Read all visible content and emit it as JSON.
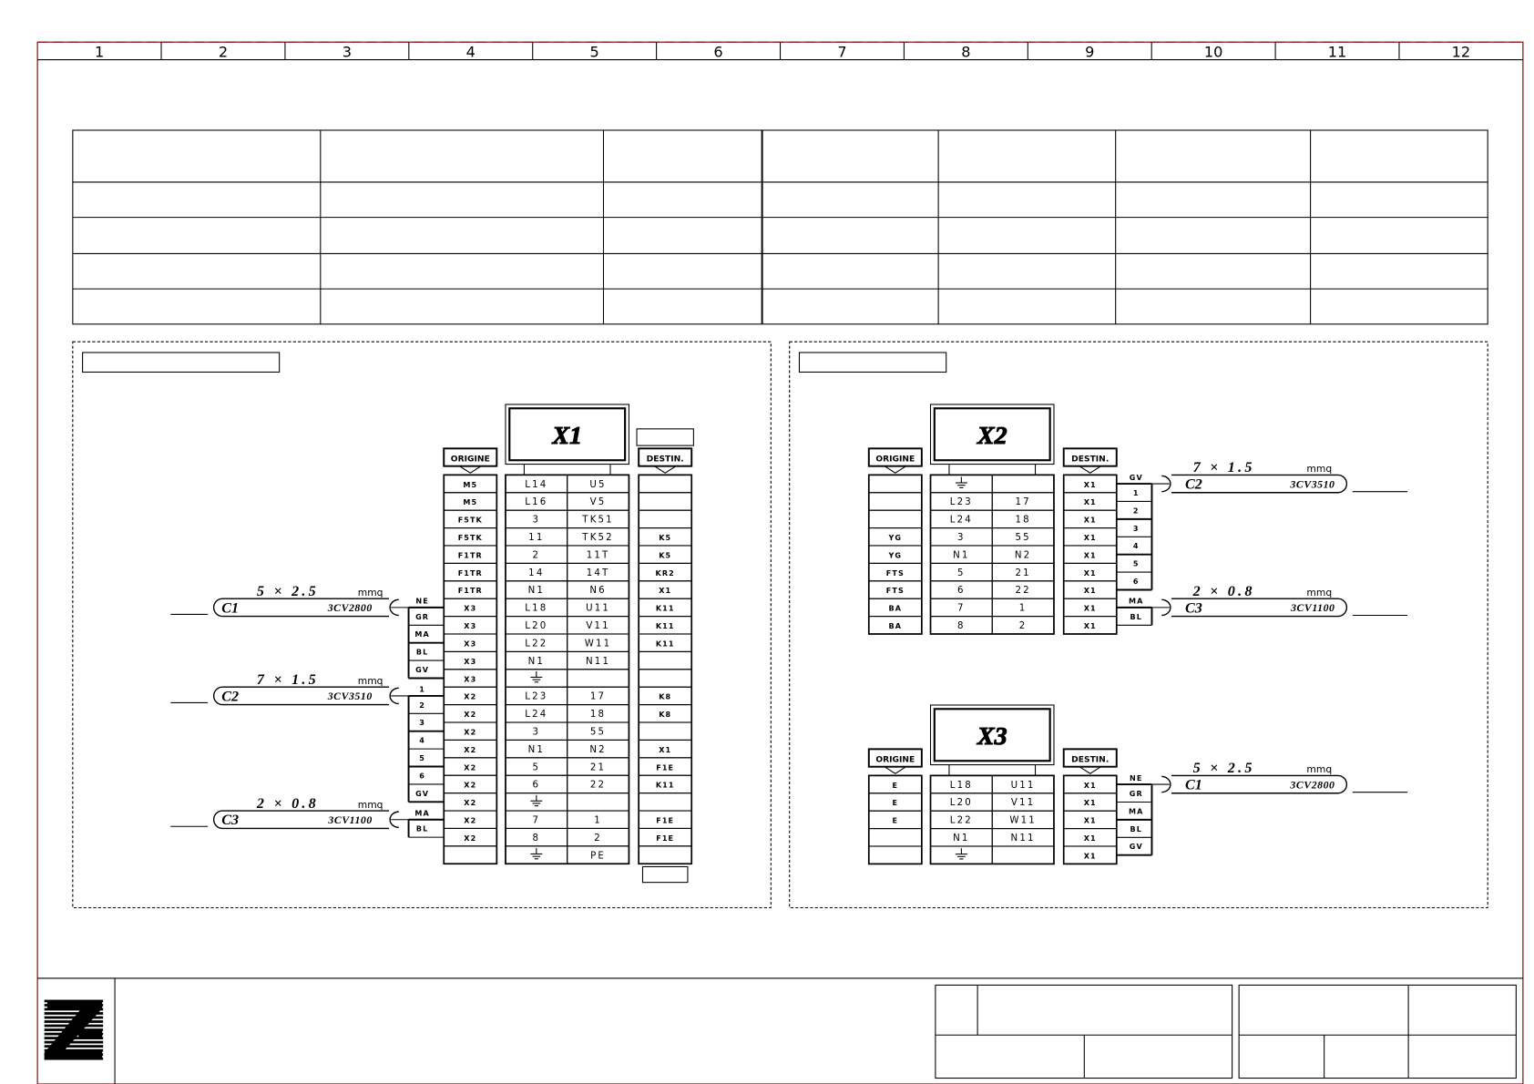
{
  "colors": {
    "frame": "#8b1c24",
    "ink": "#000000"
  },
  "header": {
    "columns": [
      "1",
      "2",
      "3",
      "4",
      "5",
      "6",
      "7",
      "8",
      "9",
      "10",
      "11",
      "12"
    ]
  },
  "labels": {
    "origine": "ORIGINE",
    "destin": "DESTIN.",
    "unit": "mmq"
  },
  "logo": {
    "icon": "company-logo-z"
  },
  "blocks": [
    {
      "name": "X1",
      "rows": [
        [
          "M5",
          "L14",
          "U5",
          ""
        ],
        [
          "M5",
          "L16",
          "V5",
          ""
        ],
        [
          "F5TK",
          "3",
          "TK51",
          ""
        ],
        [
          "F5TK",
          "11",
          "TK52",
          "K5"
        ],
        [
          "F1TR",
          "2",
          "11T",
          "K5"
        ],
        [
          "F1TR",
          "14",
          "14T",
          "KR2"
        ],
        [
          "F1TR",
          "N1",
          "N6",
          "X1"
        ],
        [
          "X3",
          "L18",
          "U11",
          "K11"
        ],
        [
          "X3",
          "L20",
          "V11",
          "K11"
        ],
        [
          "X3",
          "L22",
          "W11",
          "K11"
        ],
        [
          "X3",
          "N1",
          "N11",
          ""
        ],
        [
          "X3",
          "ground-icon",
          "",
          ""
        ],
        [
          "X2",
          "L23",
          "17",
          "K8"
        ],
        [
          "X2",
          "L24",
          "18",
          "K8"
        ],
        [
          "X2",
          "3",
          "55",
          ""
        ],
        [
          "X2",
          "N1",
          "N2",
          "X1"
        ],
        [
          "X2",
          "5",
          "21",
          "F1E"
        ],
        [
          "X2",
          "6",
          "22",
          "K11"
        ],
        [
          "X2",
          "ground-icon",
          "",
          ""
        ],
        [
          "X2",
          "7",
          "1",
          "F1E"
        ],
        [
          "X2",
          "8",
          "2",
          "F1E"
        ],
        [
          "",
          "ground-icon",
          "PE",
          ""
        ]
      ],
      "cables": [
        {
          "id": "C1",
          "spec": "5 × 2.5",
          "code": "3CV2800",
          "row": 7,
          "wires": [
            "NE",
            "GR",
            "MA",
            "BL",
            "GV"
          ]
        },
        {
          "id": "C2",
          "spec": "7 × 1.5",
          "code": "3CV3510",
          "row": 12,
          "wires": [
            "1",
            "2",
            "3",
            "4",
            "5",
            "6",
            "GV"
          ]
        },
        {
          "id": "C3",
          "spec": "2 × 0.8",
          "code": "3CV1100",
          "row": 19,
          "wires": [
            "MA",
            "BL"
          ]
        }
      ]
    },
    {
      "name": "X2",
      "rows": [
        [
          "",
          "ground-icon",
          "",
          "X1"
        ],
        [
          "",
          "L23",
          "17",
          "X1"
        ],
        [
          "",
          "L24",
          "18",
          "X1"
        ],
        [
          "YG",
          "3",
          "55",
          "X1"
        ],
        [
          "YG",
          "N1",
          "N2",
          "X1"
        ],
        [
          "FTS",
          "5",
          "21",
          "X1"
        ],
        [
          "FTS",
          "6",
          "22",
          "X1"
        ],
        [
          "BA",
          "7",
          "1",
          "X1"
        ],
        [
          "BA",
          "8",
          "2",
          "X1"
        ]
      ],
      "cables": [
        {
          "id": "C2",
          "spec": "7 × 1.5",
          "code": "3CV3510",
          "row": 0,
          "wires": [
            "GV",
            "1",
            "2",
            "3",
            "4",
            "5",
            "6"
          ]
        },
        {
          "id": "C3",
          "spec": "2 × 0.8",
          "code": "3CV1100",
          "row": 7,
          "wires": [
            "MA",
            "BL"
          ]
        }
      ]
    },
    {
      "name": "X3",
      "rows": [
        [
          "E",
          "L18",
          "U11",
          "X1"
        ],
        [
          "E",
          "L20",
          "V11",
          "X1"
        ],
        [
          "E",
          "L22",
          "W11",
          "X1"
        ],
        [
          "",
          "N1",
          "N11",
          "X1"
        ],
        [
          "",
          "ground-icon",
          "",
          "X1"
        ]
      ],
      "cables": [
        {
          "id": "C1",
          "spec": "5 × 2.5",
          "code": "3CV2800",
          "row": 0,
          "wires": [
            "NE",
            "GR",
            "MA",
            "BL",
            "GV"
          ]
        }
      ]
    }
  ]
}
